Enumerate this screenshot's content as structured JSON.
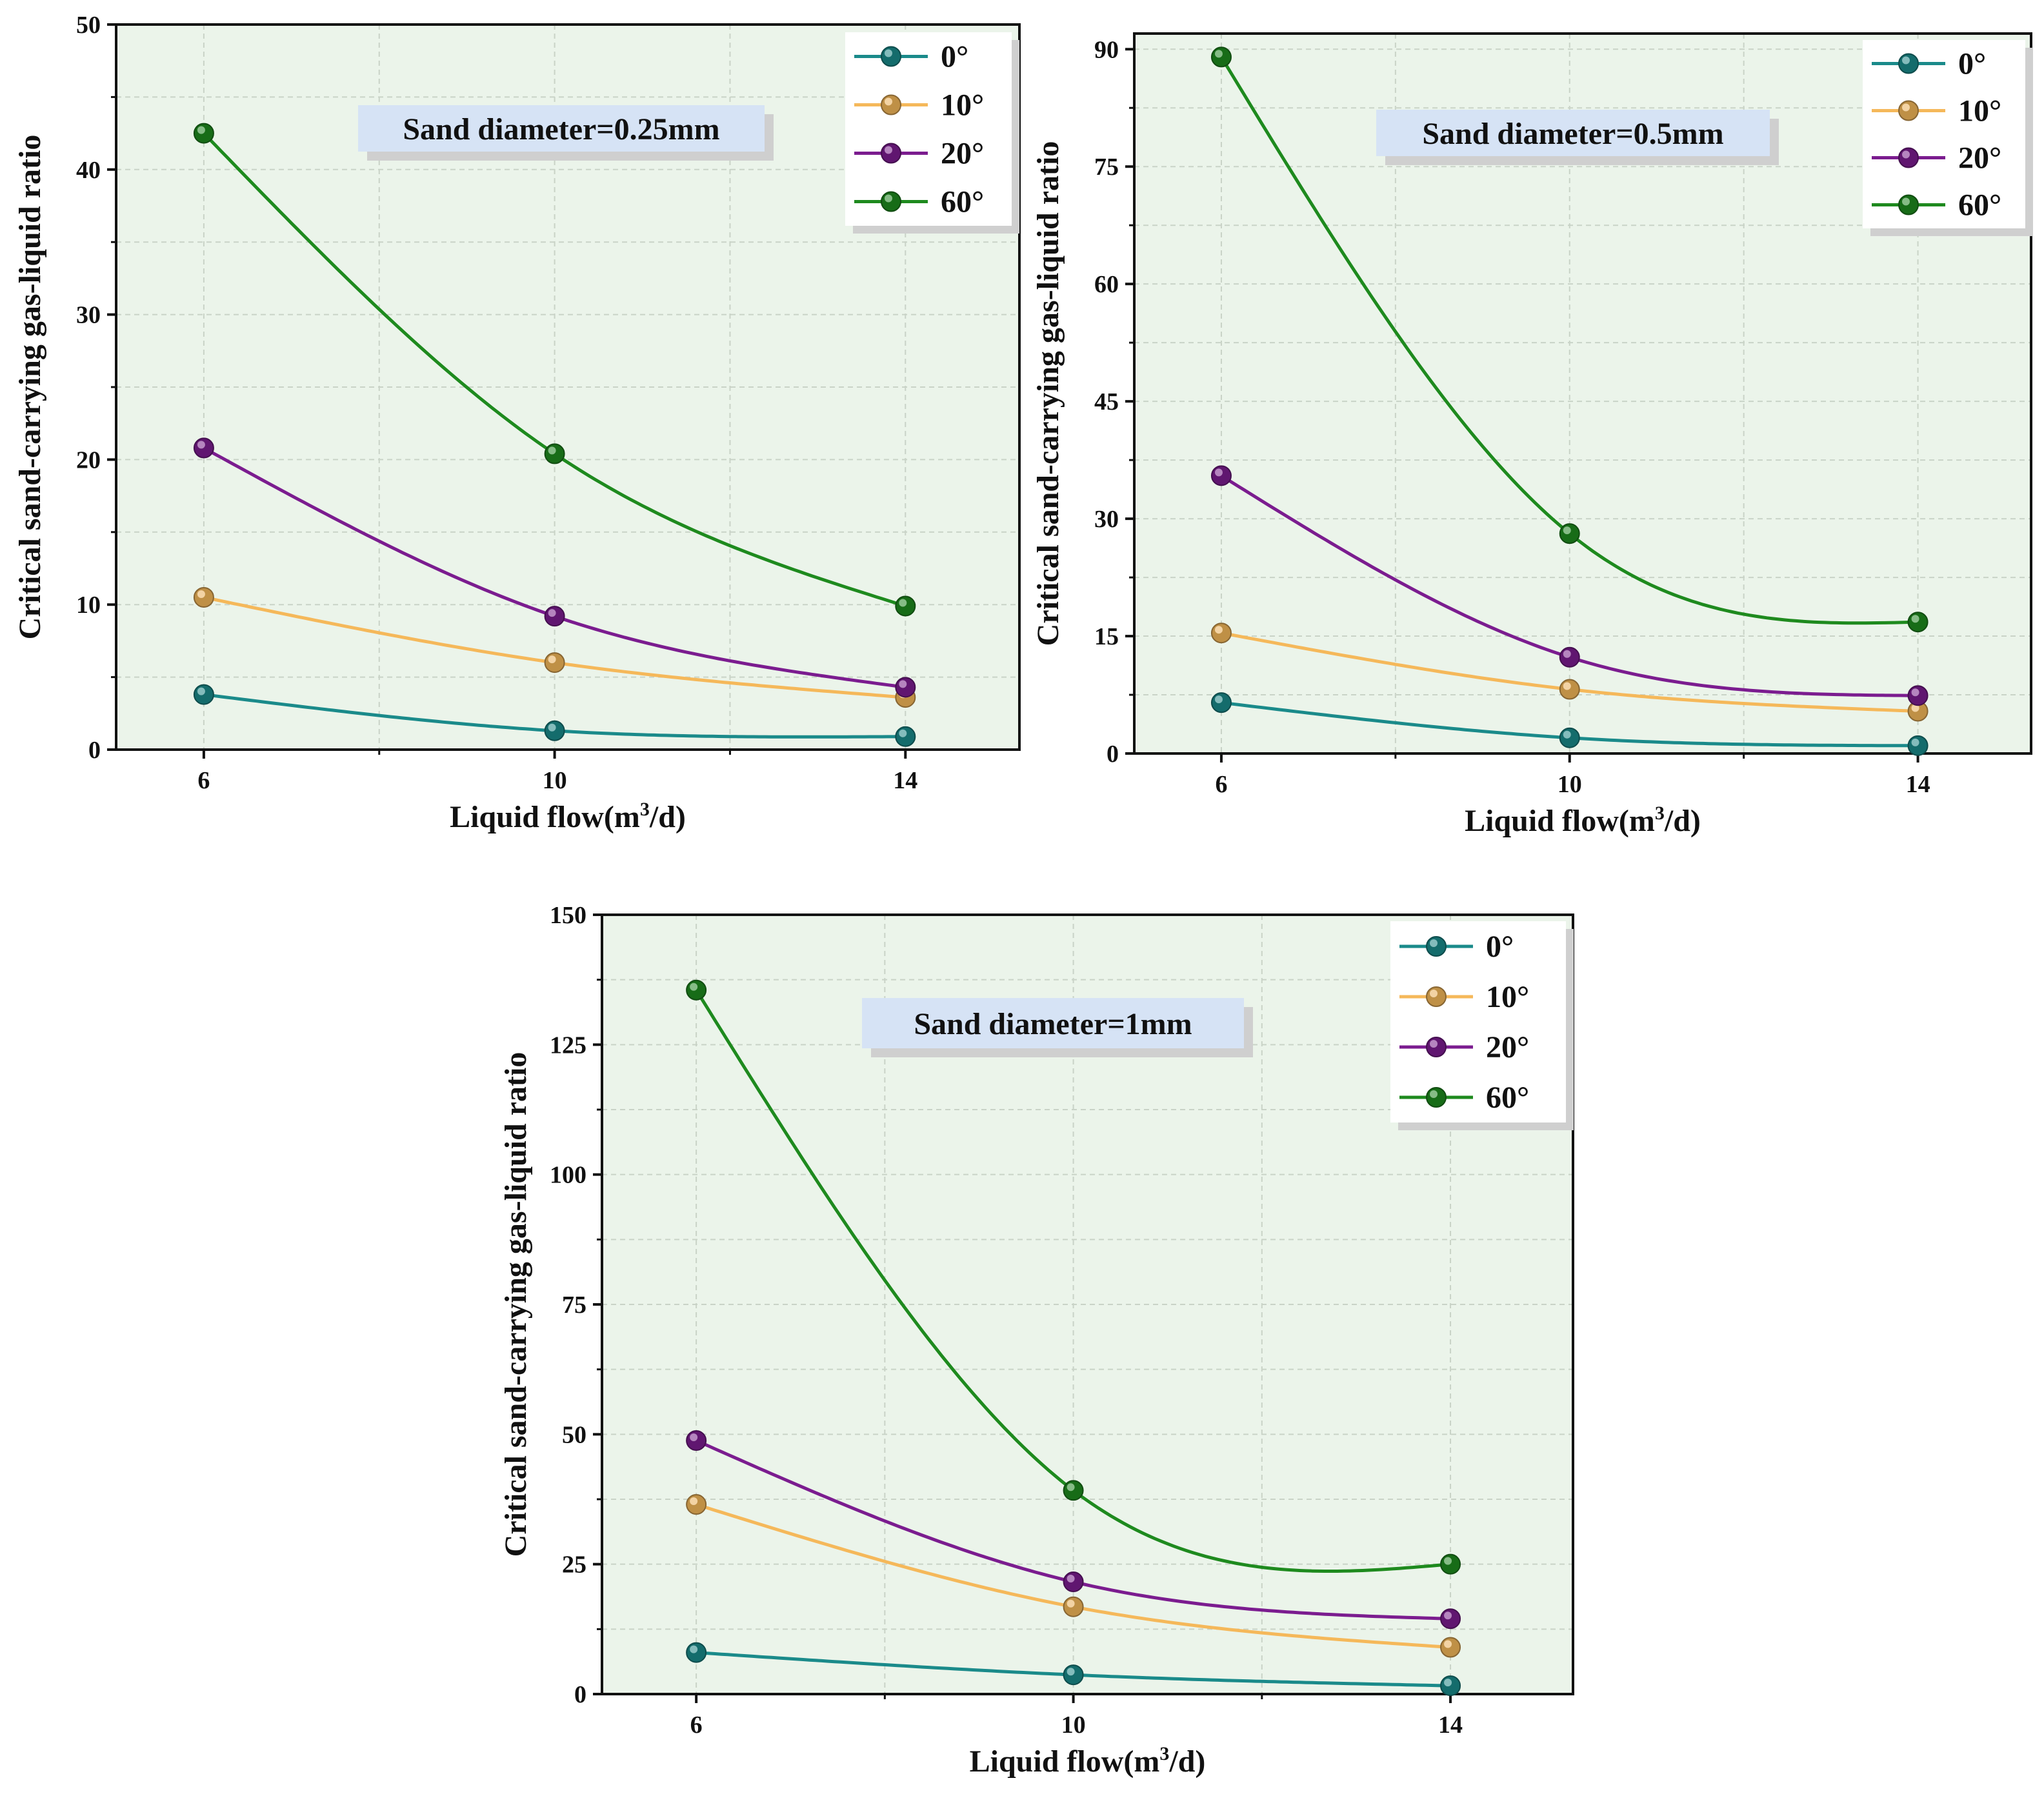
{
  "chart_data": [
    {
      "type": "line",
      "title": "",
      "annotation": "Sand diameter=0.25mm",
      "xlabel_main": "Liquid flow(m",
      "xlabel_sup": "3",
      "xlabel_end": "/d)",
      "ylabel": "Critical sand-carrying gas-liquid ratio",
      "x": [
        6,
        10,
        14
      ],
      "xticks": [
        "6",
        "10",
        "14"
      ],
      "ylim": [
        0,
        50
      ],
      "yticks": [
        "0",
        "10",
        "20",
        "30",
        "40",
        "50"
      ],
      "ytick_values": [
        0,
        10,
        20,
        30,
        40,
        50
      ],
      "grid": true,
      "legend_position": "top-right",
      "series": [
        {
          "name": "0°",
          "color": "#1a8a8a",
          "values": [
            3.8,
            1.3,
            0.9
          ]
        },
        {
          "name": "10°",
          "color": "#f5b85a",
          "values": [
            10.5,
            6.0,
            3.6
          ]
        },
        {
          "name": "20°",
          "color": "#7b1c8f",
          "values": [
            20.8,
            9.2,
            4.3
          ]
        },
        {
          "name": "60°",
          "color": "#1e8a1e",
          "values": [
            42.5,
            20.4,
            9.9
          ]
        }
      ]
    },
    {
      "type": "line",
      "title": "",
      "annotation": "Sand diameter=0.5mm",
      "xlabel_main": "Liquid flow(m",
      "xlabel_sup": "3",
      "xlabel_end": "/d)",
      "ylabel": "Critical sand-carrying gas-liquid ratio",
      "x": [
        6,
        10,
        14
      ],
      "xticks": [
        "6",
        "10",
        "14"
      ],
      "ylim": [
        0,
        92
      ],
      "yticks": [
        "0",
        "15",
        "30",
        "45",
        "60",
        "75",
        "90"
      ],
      "ytick_values": [
        0,
        15,
        30,
        45,
        60,
        75,
        90
      ],
      "grid": true,
      "legend_position": "top-right",
      "series": [
        {
          "name": "0°",
          "color": "#1a8a8a",
          "values": [
            6.5,
            2.0,
            1.0
          ]
        },
        {
          "name": "10°",
          "color": "#f5b85a",
          "values": [
            15.4,
            8.2,
            5.4
          ]
        },
        {
          "name": "20°",
          "color": "#7b1c8f",
          "values": [
            35.5,
            12.3,
            7.4
          ]
        },
        {
          "name": "60°",
          "color": "#1e8a1e",
          "values": [
            89.0,
            28.1,
            16.8
          ]
        }
      ]
    },
    {
      "type": "line",
      "title": "",
      "annotation": "Sand diameter=1mm",
      "xlabel_main": "Liquid flow(m",
      "xlabel_sup": "3",
      "xlabel_end": "/d)",
      "ylabel": "Critical sand-carrying gas-liquid ratio",
      "x": [
        6,
        10,
        14
      ],
      "xticks": [
        "6",
        "10",
        "14"
      ],
      "ylim": [
        0,
        150
      ],
      "yticks": [
        "0",
        "25",
        "50",
        "75",
        "100",
        "125",
        "150"
      ],
      "ytick_values": [
        0,
        25,
        50,
        75,
        100,
        125,
        150
      ],
      "grid": true,
      "legend_position": "top-right",
      "series": [
        {
          "name": "0°",
          "color": "#1a8a8a",
          "values": [
            8.0,
            3.7,
            1.6
          ]
        },
        {
          "name": "10°",
          "color": "#f5b85a",
          "values": [
            36.5,
            16.8,
            9.0
          ]
        },
        {
          "name": "20°",
          "color": "#7b1c8f",
          "values": [
            48.8,
            21.6,
            14.5
          ]
        },
        {
          "name": "60°",
          "color": "#1e8a1e",
          "values": [
            135.5,
            39.2,
            25.0
          ]
        }
      ]
    }
  ]
}
